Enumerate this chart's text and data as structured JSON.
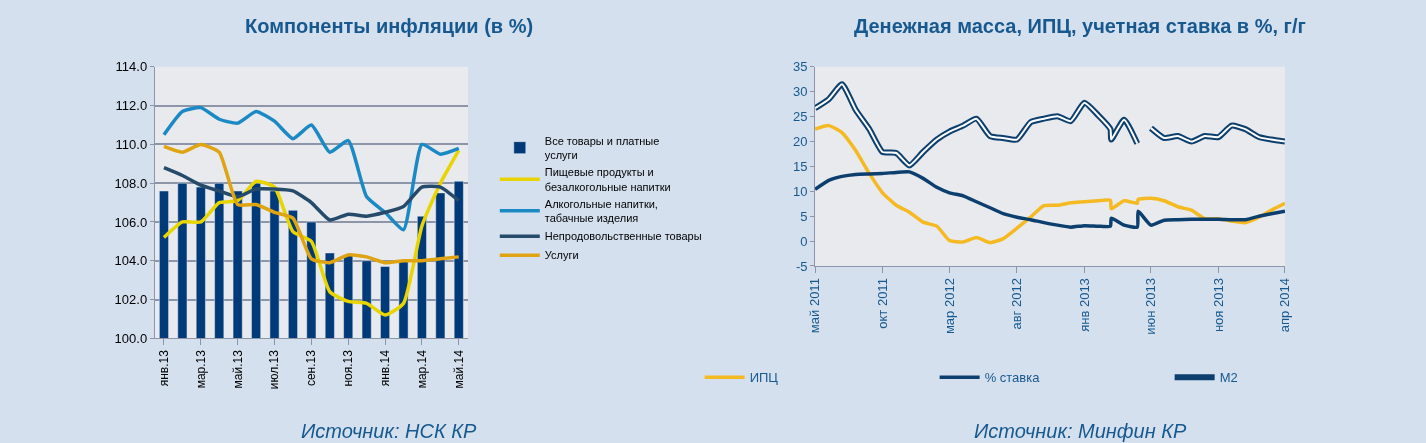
{
  "chart_data": [
    {
      "type": "bar",
      "title": "Компоненты инфляции (в %)",
      "categories": [
        "янв.13",
        null,
        "мар.13",
        null,
        "май.13",
        null,
        "июл.13",
        null,
        "сен.13",
        null,
        "ноя.13",
        null,
        "янв.14",
        null,
        "мар.14",
        null,
        "май.14"
      ],
      "series": [
        {
          "name": "Все товары и платные услуги",
          "type": "bar",
          "color": "#003a78",
          "values": [
            107.6,
            108.0,
            107.8,
            108.0,
            107.6,
            108.0,
            107.6,
            106.6,
            106.0,
            104.4,
            104.3,
            104.0,
            103.7,
            104.0,
            106.3,
            107.5,
            108.1
          ]
        },
        {
          "name": "Пищевые продукты и безалкогольные напитки",
          "type": "line",
          "color": "#e8d500",
          "values": [
            105.2,
            106.0,
            106.0,
            107.0,
            107.1,
            108.1,
            107.8,
            105.5,
            105.0,
            102.4,
            101.9,
            101.8,
            101.2,
            101.8,
            105.8,
            108.0,
            109.7
          ]
        },
        {
          "name": "Алкогольные напитки, табачные изделия",
          "type": "line",
          "color": "#1b8ac4",
          "values": [
            110.5,
            111.7,
            111.9,
            111.3,
            111.1,
            111.7,
            111.2,
            110.3,
            111.0,
            109.6,
            110.2,
            107.3,
            106.5,
            105.6,
            110.0,
            109.5,
            109.8
          ]
        },
        {
          "name": "Непродовольственные товары",
          "type": "line",
          "color": "#264a6a",
          "values": [
            108.8,
            108.4,
            107.9,
            107.6,
            107.3,
            107.7,
            107.7,
            107.6,
            107.0,
            106.1,
            106.4,
            106.3,
            106.5,
            106.8,
            107.8,
            107.8,
            107.1
          ]
        },
        {
          "name": "Услуги",
          "type": "line",
          "color": "#e0a412",
          "values": [
            109.9,
            109.6,
            110.0,
            109.6,
            106.9,
            106.9,
            106.5,
            106.2,
            104.1,
            103.9,
            104.3,
            104.2,
            103.9,
            104.0,
            104.0,
            104.1,
            104.2
          ]
        }
      ],
      "ylim": [
        100,
        114
      ],
      "yticks": [
        {
          "value": 100,
          "label": "100.0"
        },
        {
          "value": 102,
          "label": "102.0"
        },
        {
          "value": 104,
          "label": "104.0"
        },
        {
          "value": 106,
          "label": "106.0"
        },
        {
          "value": 108,
          "label": "108.0"
        },
        {
          "value": 110,
          "label": "110.0"
        },
        {
          "value": 112,
          "label": "112.0"
        },
        {
          "value": 114,
          "label": "114.0"
        }
      ],
      "grid": "y",
      "legend": "right",
      "annotations": [
        "Источник: НСК КР"
      ]
    },
    {
      "type": "line",
      "title": "Денежная масса, ИПЦ, учетная ставка в %, г/г",
      "series": [
        {
          "name": "ИПЦ",
          "color": "#f5b921",
          "x": [
            "2011-05-01",
            "2011-06-01",
            "2011-07-01",
            "2011-08-01",
            "2011-09-01",
            "2011-10-01",
            "2011-11-01",
            "2011-12-01",
            "2012-01-01",
            "2012-02-01",
            "2012-03-01",
            "2012-04-01",
            "2012-05-01",
            "2012-06-01",
            "2012-07-01",
            "2012-08-01",
            "2012-09-01",
            "2012-10-01",
            "2012-11-01",
            "2012-12-01",
            "2013-01-01",
            "2013-02-01",
            "2013-03-01",
            "2013-03-03",
            "2013-04-01",
            "2013-05-01",
            "2013-05-03",
            "2013-06-01",
            "2013-07-01",
            "2013-08-01",
            "2013-09-01",
            "2013-10-01",
            "2013-11-01",
            "2013-12-01",
            "2014-01-01",
            "2014-02-01",
            "2014-03-01",
            "2014-04-01"
          ],
          "values": [
            22.5,
            23.2,
            21.8,
            18.2,
            13.6,
            9.7,
            7.2,
            5.8,
            3.8,
            3.0,
            0.1,
            -0.2,
            0.7,
            -0.3,
            0.5,
            2.6,
            4.8,
            7.1,
            7.2,
            7.7,
            7.9,
            8.1,
            8.2,
            6.5,
            8.1,
            7.6,
            8.4,
            8.6,
            8.1,
            6.9,
            6.2,
            4.5,
            4.5,
            4.0,
            3.7,
            4.8,
            6.2,
            7.6
          ]
        },
        {
          "name": "% ставка",
          "color": "#0d3f6e",
          "x": [
            "2011-05-01",
            "2011-06-01",
            "2011-07-01",
            "2011-08-01",
            "2011-09-01",
            "2011-10-01",
            "2011-11-01",
            "2011-12-01",
            "2012-01-01",
            "2012-02-01",
            "2012-03-01",
            "2012-04-01",
            "2012-05-01",
            "2012-06-01",
            "2012-07-01",
            "2012-08-01",
            "2012-09-01",
            "2012-10-01",
            "2012-11-01",
            "2012-12-01",
            "2013-01-01",
            "2013-02-01",
            "2013-03-01",
            "2013-03-03",
            "2013-04-01",
            "2013-05-01",
            "2013-05-03",
            "2013-06-01",
            "2013-07-01",
            "2013-08-01",
            "2013-09-01",
            "2013-10-01",
            "2013-11-01",
            "2013-12-01",
            "2014-01-01",
            "2014-02-01",
            "2014-03-01",
            "2014-04-01"
          ],
          "values": [
            10.4,
            12.2,
            13.0,
            13.4,
            13.5,
            13.6,
            13.8,
            13.9,
            12.6,
            10.8,
            9.7,
            9.1,
            7.9,
            6.7,
            5.5,
            4.8,
            4.3,
            3.7,
            3.2,
            2.8,
            3.1,
            3.0,
            3.0,
            4.6,
            3.2,
            2.8,
            6.0,
            3.2,
            4.2,
            4.3,
            4.4,
            4.4,
            4.4,
            4.3,
            4.3,
            5.0,
            5.5,
            6.0
          ]
        },
        {
          "name": "M2",
          "color": "#0d3f6e",
          "x": [
            "2011-05-01",
            "2011-06-01",
            "2011-07-01",
            "2011-08-01",
            "2011-09-01",
            "2011-10-01",
            "2011-11-01",
            "2011-12-01",
            "2012-01-01",
            "2012-02-01",
            "2012-03-01",
            "2012-04-01",
            "2012-05-01",
            "2012-06-01",
            "2012-07-01",
            "2012-08-01",
            "2012-09-01",
            "2012-10-01",
            "2012-11-01",
            "2012-12-01",
            "2013-01-01",
            "2013-02-01",
            "2013-03-01",
            "2013-03-03",
            "2013-04-01",
            "2013-05-01",
            "2013-05-15",
            "2013-06-01",
            "2013-07-01",
            "2013-08-01",
            "2013-09-01",
            "2013-10-01",
            "2013-11-01",
            "2013-12-01",
            "2014-01-01",
            "2014-02-01",
            "2014-03-01",
            "2014-04-01"
          ],
          "values": [
            26.7,
            28.5,
            31.5,
            26.4,
            22.5,
            17.9,
            17.7,
            15.2,
            17.9,
            20.4,
            22.0,
            23.2,
            24.6,
            21.1,
            20.7,
            20.4,
            23.9,
            24.6,
            25.1,
            24.1,
            27.8,
            25.3,
            22.5,
            20.4,
            24.4,
            19.6,
            null,
            22.7,
            20.7,
            21.1,
            20.0,
            21.1,
            20.9,
            23.2,
            22.5,
            20.9,
            20.4,
            20.0
          ]
        }
      ],
      "xlim": [
        "2011-05-01",
        "2014-04-01"
      ],
      "xticks": [
        {
          "value": "2011-05-01",
          "label": "май 2011"
        },
        {
          "value": "2011-10-01",
          "label": "окт 2011"
        },
        {
          "value": "2012-03-01",
          "label": "мар 2012"
        },
        {
          "value": "2012-08-01",
          "label": "авг 2012"
        },
        {
          "value": "2013-01-01",
          "label": "янв 2013"
        },
        {
          "value": "2013-06-01",
          "label": "июн 2013"
        },
        {
          "value": "2013-11-01",
          "label": "ноя 2013"
        },
        {
          "value": "2014-04-01",
          "label": "апр 2014"
        }
      ],
      "ylim": [
        -5,
        35
      ],
      "yticks": [
        -5,
        0,
        5,
        10,
        15,
        20,
        25,
        30,
        35
      ],
      "grid": false,
      "legend": "bottom",
      "annotations": [
        "Источник: Минфин КР"
      ]
    }
  ]
}
